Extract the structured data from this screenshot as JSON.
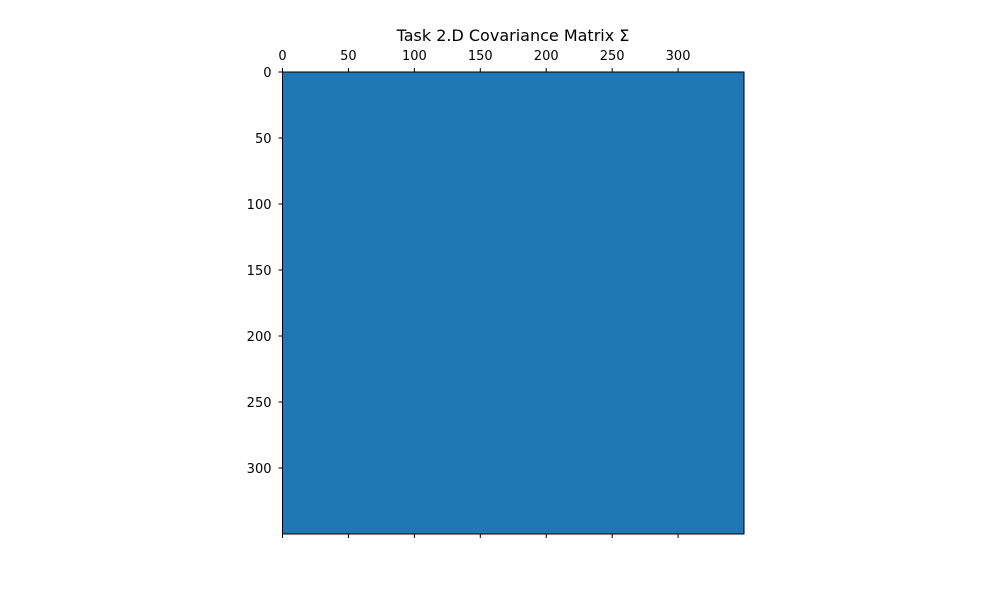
{
  "chart_data": {
    "type": "heatmap",
    "title": "Task 2.D Covariance Matrix Σ",
    "xlabel": "",
    "ylabel": "",
    "matrix_size": 350,
    "xlim": [
      0,
      350
    ],
    "ylim": [
      350,
      0
    ],
    "x_ticks": [
      0,
      50,
      100,
      150,
      200,
      250,
      300
    ],
    "y_ticks": [
      0,
      50,
      100,
      150,
      200,
      250,
      300
    ],
    "x_tick_labels": [
      "0",
      "50",
      "100",
      "150",
      "200",
      "250",
      "300"
    ],
    "y_tick_labels": [
      "0",
      "50",
      "100",
      "150",
      "200",
      "250",
      "300"
    ],
    "x_axis_position": "top",
    "grid": false,
    "colorbar": false,
    "uniform_value_color": "#1f77b4"
  }
}
